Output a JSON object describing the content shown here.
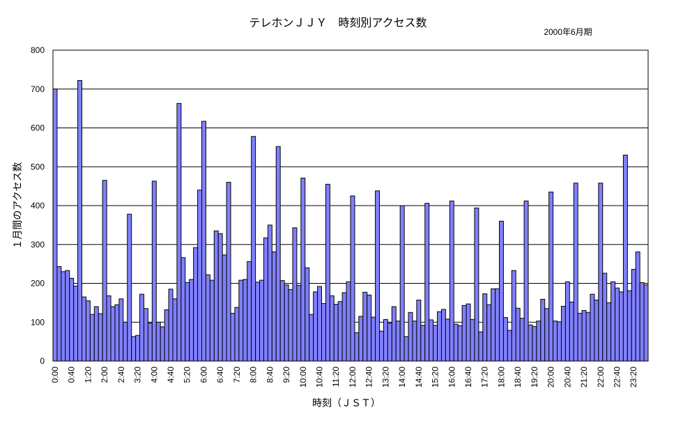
{
  "chart_data": {
    "type": "bar",
    "title": "テレホンＪＪＹ　時刻別アクセス数",
    "subtitle": "2000年6月期",
    "xlabel": "時刻（ＪＳＴ）",
    "ylabel": "１月間のアクセス数",
    "ylim": [
      0,
      800
    ],
    "yticks": [
      0,
      100,
      200,
      300,
      400,
      500,
      600,
      700,
      800
    ],
    "grid": true,
    "legend": "none",
    "bar_color": "#8080ff",
    "x_tick_every": 4,
    "categories": [
      "0:00",
      "0:10",
      "0:20",
      "0:30",
      "0:40",
      "0:50",
      "1:00",
      "1:10",
      "1:20",
      "1:30",
      "1:40",
      "1:50",
      "2:00",
      "2:10",
      "2:20",
      "2:30",
      "2:40",
      "2:50",
      "3:00",
      "3:10",
      "3:20",
      "3:30",
      "3:40",
      "3:50",
      "4:00",
      "4:10",
      "4:20",
      "4:30",
      "4:40",
      "4:50",
      "5:00",
      "5:10",
      "5:20",
      "5:30",
      "5:40",
      "5:50",
      "6:00",
      "6:10",
      "6:20",
      "6:30",
      "6:40",
      "6:50",
      "7:00",
      "7:10",
      "7:20",
      "7:30",
      "7:40",
      "7:50",
      "8:00",
      "8:10",
      "8:20",
      "8:30",
      "8:40",
      "8:50",
      "9:00",
      "9:10",
      "9:20",
      "9:30",
      "9:40",
      "9:50",
      "10:00",
      "10:10",
      "10:20",
      "10:30",
      "10:40",
      "10:50",
      "11:00",
      "11:10",
      "11:20",
      "11:30",
      "11:40",
      "11:50",
      "12:00",
      "12:10",
      "12:20",
      "12:30",
      "12:40",
      "12:50",
      "13:00",
      "13:10",
      "13:20",
      "13:30",
      "13:40",
      "13:50",
      "14:00",
      "14:10",
      "14:20",
      "14:30",
      "14:40",
      "14:50",
      "15:00",
      "15:10",
      "15:20",
      "15:30",
      "15:40",
      "15:50",
      "16:00",
      "16:10",
      "16:20",
      "16:30",
      "16:40",
      "16:50",
      "17:00",
      "17:10",
      "17:20",
      "17:30",
      "17:40",
      "17:50",
      "18:00",
      "18:10",
      "18:20",
      "18:30",
      "18:40",
      "18:50",
      "19:00",
      "19:10",
      "19:20",
      "19:30",
      "19:40",
      "19:50",
      "20:00",
      "20:10",
      "20:20",
      "20:30",
      "20:40",
      "20:50",
      "21:00",
      "21:10",
      "21:20",
      "21:30",
      "21:40",
      "21:50",
      "22:00",
      "22:10",
      "22:20",
      "22:30",
      "22:40",
      "22:50",
      "23:00",
      "23:10",
      "23:20",
      "23:30",
      "23:40",
      "23:50"
    ],
    "values": [
      700,
      243,
      230,
      233,
      213,
      193,
      722,
      165,
      155,
      120,
      140,
      122,
      465,
      168,
      140,
      145,
      160,
      100,
      378,
      63,
      66,
      172,
      135,
      98,
      463,
      100,
      88,
      132,
      185,
      160,
      663,
      266,
      202,
      210,
      292,
      440,
      617,
      222,
      208,
      335,
      328,
      273,
      460,
      123,
      138,
      208,
      210,
      256,
      578,
      203,
      208,
      317,
      350,
      281,
      552,
      207,
      196,
      184,
      343,
      195,
      471,
      240,
      120,
      178,
      192,
      148,
      455,
      168,
      146,
      153,
      176,
      204,
      425,
      73,
      115,
      177,
      170,
      113,
      438,
      77,
      107,
      98,
      140,
      103,
      400,
      63,
      125,
      103,
      157,
      92,
      406,
      106,
      92,
      127,
      133,
      108,
      412,
      95,
      91,
      143,
      147,
      107,
      394,
      75,
      173,
      145,
      186,
      186,
      360,
      112,
      79,
      233,
      136,
      110,
      412,
      93,
      89,
      103,
      159,
      135,
      435,
      103,
      101,
      141,
      204,
      152,
      458,
      123,
      130,
      125,
      172,
      157,
      458,
      226,
      150,
      204,
      188,
      178,
      530,
      181,
      236,
      281,
      202,
      196
    ]
  }
}
